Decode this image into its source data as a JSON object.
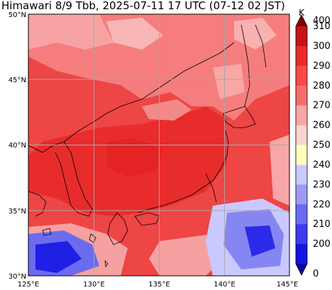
{
  "title": "Himawari 8/9 Tbb, 2025-07-11 17 UTC (07-12 02 JST)",
  "map": {
    "lat_labels": [
      "50°N",
      "45°N",
      "40°N",
      "35°N",
      "30°N"
    ],
    "lon_labels": [
      "125°E",
      "130°E",
      "135°E",
      "140°E",
      "145°E"
    ],
    "lat_range": [
      30,
      50
    ],
    "lon_range": [
      125,
      145
    ],
    "grid": true
  },
  "colorbar": {
    "unit": "K",
    "levels": [
      "400",
      "310",
      "300",
      "290",
      "280",
      "270",
      "260",
      "250",
      "240",
      "230",
      "220",
      "210",
      "200",
      "0"
    ],
    "colors": [
      "#7f0000",
      "#c4121a",
      "#ea2b2b",
      "#ff4a4a",
      "#f76d6d",
      "#f7a5a5",
      "#fbd3d3",
      "#ffffc0",
      "#c9c9ff",
      "#9b9bf7",
      "#6b6bf0",
      "#3c3cec",
      "#1414e0",
      "#0a0a9a"
    ]
  }
}
